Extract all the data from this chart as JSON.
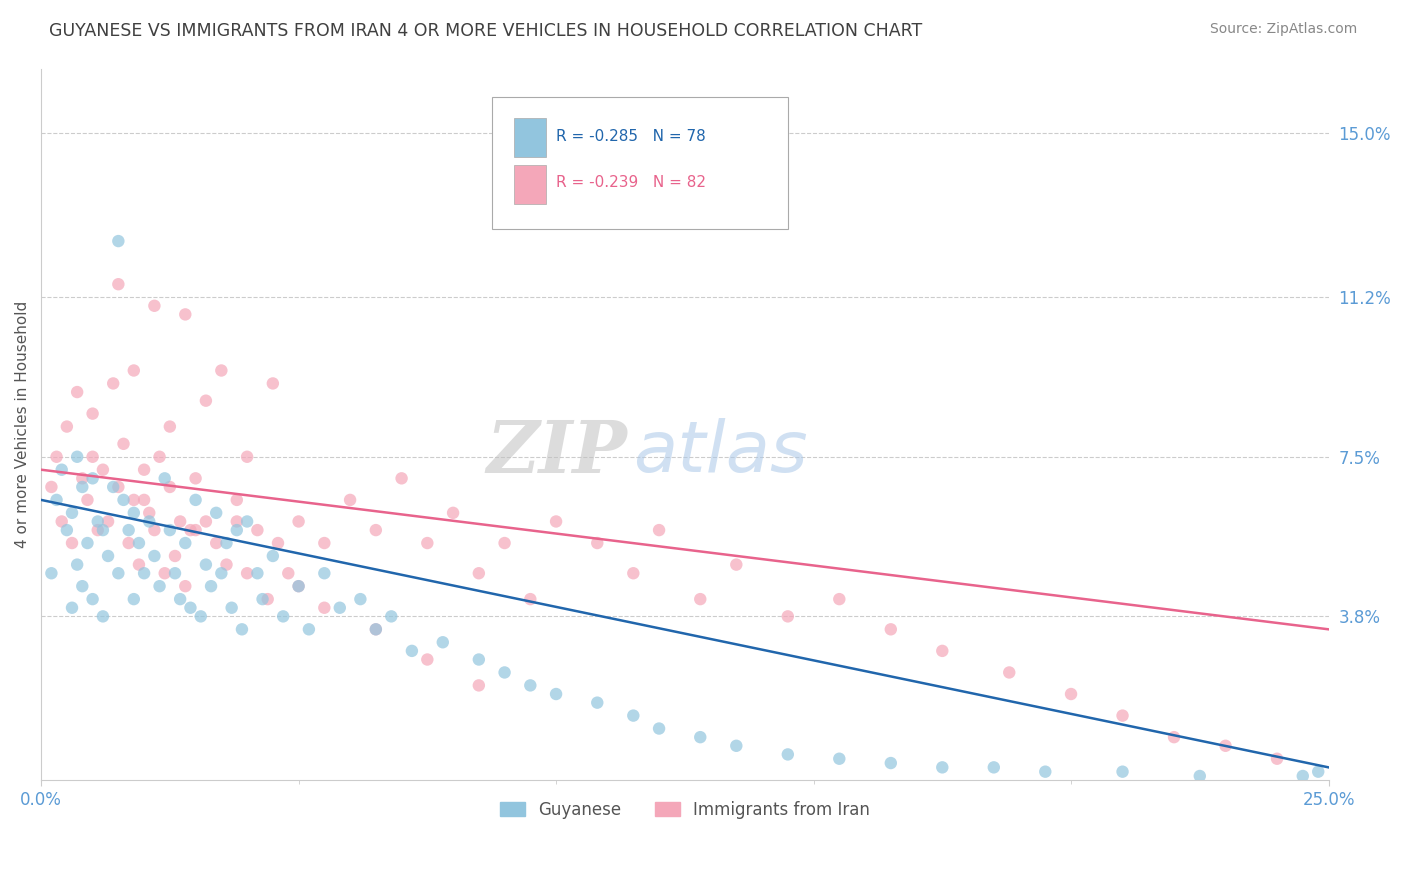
{
  "title": "GUYANESE VS IMMIGRANTS FROM IRAN 4 OR MORE VEHICLES IN HOUSEHOLD CORRELATION CHART",
  "source": "Source: ZipAtlas.com",
  "ylabel": "4 or more Vehicles in Household",
  "legend_blue_label": "Guyanese",
  "legend_pink_label": "Immigrants from Iran",
  "legend_blue_r": "R = -0.285",
  "legend_blue_n": "N = 78",
  "legend_pink_r": "R = -0.239",
  "legend_pink_n": "N = 82",
  "xmin": 0.0,
  "xmax": 0.25,
  "ymin": 0.0,
  "ymax": 0.165,
  "yticks": [
    0.0,
    0.038,
    0.075,
    0.112,
    0.15
  ],
  "ytick_labels": [
    "",
    "3.8%",
    "7.5%",
    "11.2%",
    "15.0%"
  ],
  "xticks": [
    0.0,
    0.25
  ],
  "xtick_labels": [
    "0.0%",
    "25.0%"
  ],
  "blue_color": "#92c5de",
  "pink_color": "#f4a7b9",
  "trend_blue_color": "#2166ac",
  "trend_pink_color": "#e8638c",
  "grid_color": "#cccccc",
  "title_color": "#404040",
  "axis_label_color": "#555555",
  "tick_label_color": "#5b9bd5",
  "blue_scatter_x": [
    0.002,
    0.003,
    0.004,
    0.005,
    0.006,
    0.006,
    0.007,
    0.007,
    0.008,
    0.008,
    0.009,
    0.01,
    0.01,
    0.011,
    0.012,
    0.012,
    0.013,
    0.014,
    0.015,
    0.015,
    0.016,
    0.017,
    0.018,
    0.018,
    0.019,
    0.02,
    0.021,
    0.022,
    0.023,
    0.024,
    0.025,
    0.026,
    0.027,
    0.028,
    0.029,
    0.03,
    0.031,
    0.032,
    0.033,
    0.034,
    0.035,
    0.036,
    0.037,
    0.038,
    0.039,
    0.04,
    0.042,
    0.043,
    0.045,
    0.047,
    0.05,
    0.052,
    0.055,
    0.058,
    0.062,
    0.065,
    0.068,
    0.072,
    0.078,
    0.085,
    0.09,
    0.095,
    0.1,
    0.108,
    0.115,
    0.12,
    0.128,
    0.135,
    0.145,
    0.155,
    0.165,
    0.175,
    0.185,
    0.195,
    0.21,
    0.225,
    0.245,
    0.248
  ],
  "blue_scatter_y": [
    0.048,
    0.065,
    0.072,
    0.058,
    0.062,
    0.04,
    0.075,
    0.05,
    0.068,
    0.045,
    0.055,
    0.07,
    0.042,
    0.06,
    0.058,
    0.038,
    0.052,
    0.068,
    0.125,
    0.048,
    0.065,
    0.058,
    0.062,
    0.042,
    0.055,
    0.048,
    0.06,
    0.052,
    0.045,
    0.07,
    0.058,
    0.048,
    0.042,
    0.055,
    0.04,
    0.065,
    0.038,
    0.05,
    0.045,
    0.062,
    0.048,
    0.055,
    0.04,
    0.058,
    0.035,
    0.06,
    0.048,
    0.042,
    0.052,
    0.038,
    0.045,
    0.035,
    0.048,
    0.04,
    0.042,
    0.035,
    0.038,
    0.03,
    0.032,
    0.028,
    0.025,
    0.022,
    0.02,
    0.018,
    0.015,
    0.012,
    0.01,
    0.008,
    0.006,
    0.005,
    0.004,
    0.003,
    0.003,
    0.002,
    0.002,
    0.001,
    0.001,
    0.002
  ],
  "pink_scatter_x": [
    0.002,
    0.003,
    0.004,
    0.005,
    0.006,
    0.007,
    0.008,
    0.009,
    0.01,
    0.011,
    0.012,
    0.013,
    0.014,
    0.015,
    0.016,
    0.017,
    0.018,
    0.019,
    0.02,
    0.021,
    0.022,
    0.023,
    0.024,
    0.025,
    0.026,
    0.027,
    0.028,
    0.029,
    0.03,
    0.032,
    0.034,
    0.036,
    0.038,
    0.04,
    0.042,
    0.044,
    0.046,
    0.048,
    0.05,
    0.055,
    0.06,
    0.065,
    0.07,
    0.075,
    0.08,
    0.085,
    0.09,
    0.095,
    0.1,
    0.108,
    0.115,
    0.12,
    0.128,
    0.135,
    0.145,
    0.155,
    0.165,
    0.175,
    0.188,
    0.2,
    0.21,
    0.22,
    0.23,
    0.24,
    0.028,
    0.035,
    0.022,
    0.045,
    0.015,
    0.032,
    0.018,
    0.04,
    0.025,
    0.038,
    0.01,
    0.02,
    0.03,
    0.05,
    0.055,
    0.065,
    0.075,
    0.085
  ],
  "pink_scatter_y": [
    0.068,
    0.075,
    0.06,
    0.082,
    0.055,
    0.09,
    0.07,
    0.065,
    0.085,
    0.058,
    0.072,
    0.06,
    0.092,
    0.068,
    0.078,
    0.055,
    0.065,
    0.05,
    0.072,
    0.062,
    0.058,
    0.075,
    0.048,
    0.068,
    0.052,
    0.06,
    0.045,
    0.058,
    0.07,
    0.06,
    0.055,
    0.05,
    0.065,
    0.048,
    0.058,
    0.042,
    0.055,
    0.048,
    0.06,
    0.055,
    0.065,
    0.058,
    0.07,
    0.055,
    0.062,
    0.048,
    0.055,
    0.042,
    0.06,
    0.055,
    0.048,
    0.058,
    0.042,
    0.05,
    0.038,
    0.042,
    0.035,
    0.03,
    0.025,
    0.02,
    0.015,
    0.01,
    0.008,
    0.005,
    0.108,
    0.095,
    0.11,
    0.092,
    0.115,
    0.088,
    0.095,
    0.075,
    0.082,
    0.06,
    0.075,
    0.065,
    0.058,
    0.045,
    0.04,
    0.035,
    0.028,
    0.022
  ],
  "blue_trend_y_start": 0.065,
  "blue_trend_y_end": 0.003,
  "pink_trend_y_start": 0.072,
  "pink_trend_y_end": 0.035,
  "figsize": [
    14.06,
    8.92
  ],
  "dpi": 100
}
